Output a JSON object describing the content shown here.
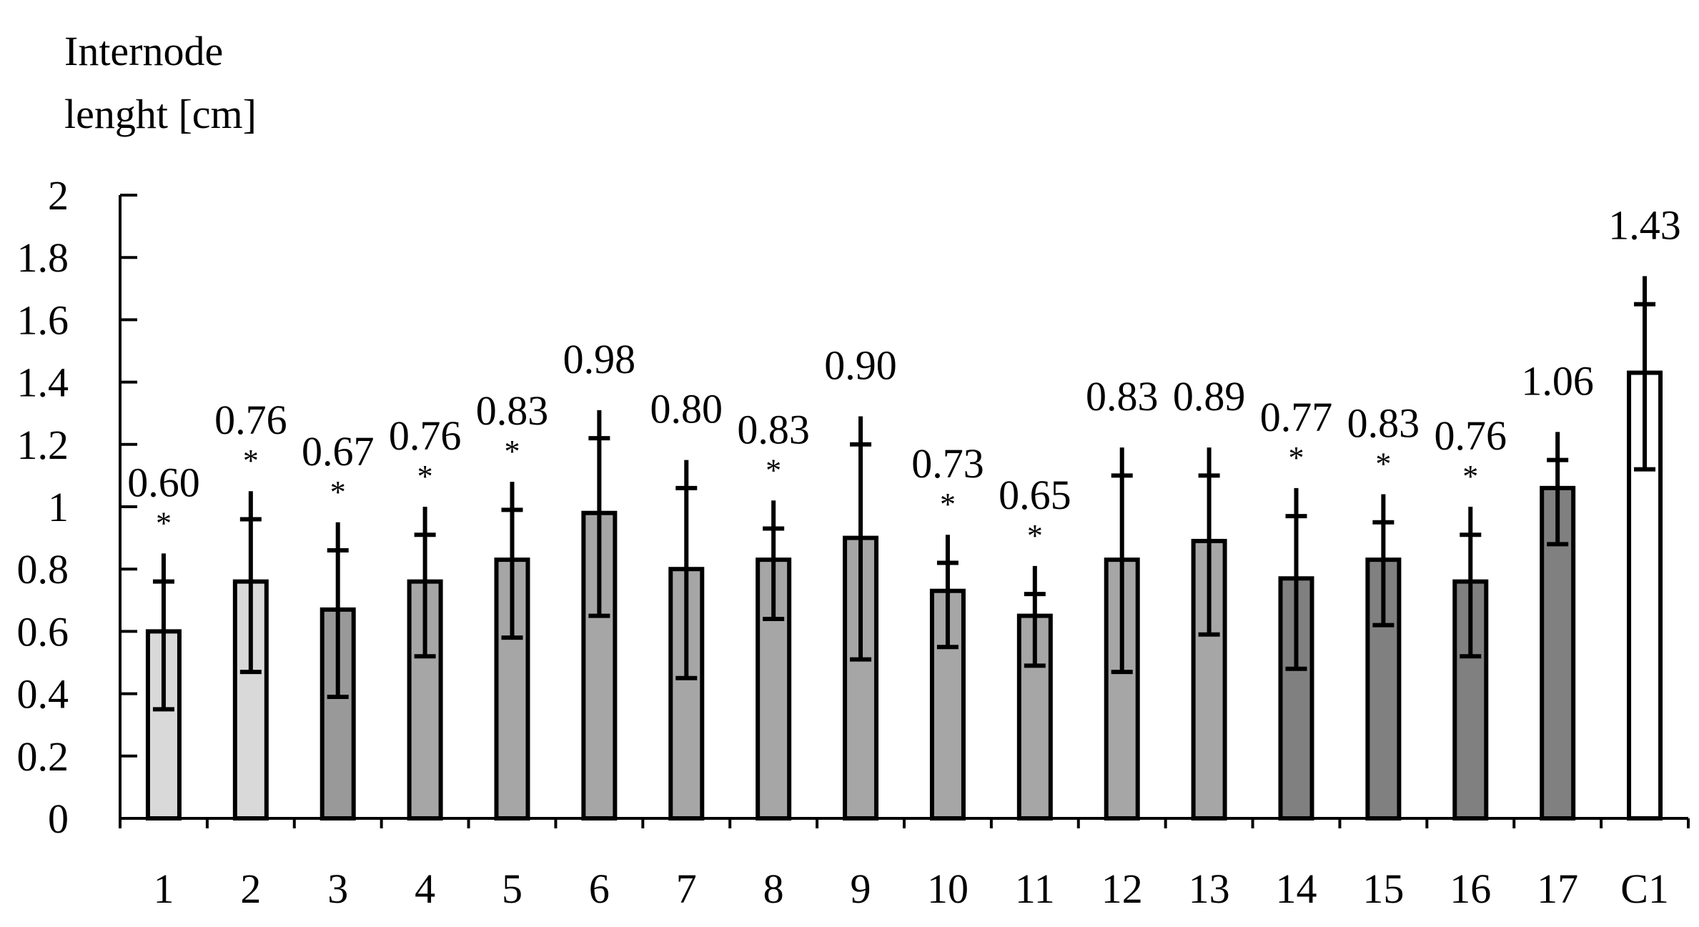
{
  "chart_data": {
    "type": "bar",
    "ylabel_lines": [
      "Internode",
      "lenght [cm]"
    ],
    "ylim": [
      0,
      2
    ],
    "yticks": [
      "0",
      "0.2",
      "0.4",
      "0.6",
      "0.8",
      "1",
      "1.2",
      "1.4",
      "1.6",
      "1.8",
      "2"
    ],
    "grid": false,
    "categories": [
      "1",
      "2",
      "3",
      "4",
      "5",
      "6",
      "7",
      "8",
      "9",
      "10",
      "11",
      "12",
      "13",
      "14",
      "15",
      "16",
      "17",
      "C1"
    ],
    "values": [
      0.6,
      0.76,
      0.67,
      0.76,
      0.83,
      0.98,
      0.8,
      0.83,
      0.9,
      0.73,
      0.65,
      0.83,
      0.89,
      0.77,
      0.83,
      0.76,
      1.06,
      1.43
    ],
    "value_labels": [
      "0.60",
      "0.76",
      "0.67",
      "0.76",
      "0.83",
      "0.98",
      "0.80",
      "0.83",
      "0.90",
      "0.73",
      "0.65",
      "0.83",
      "0.89",
      "0.77",
      "0.83",
      "0.76",
      "1.06",
      "1.43"
    ],
    "error_upper": [
      0.25,
      0.29,
      0.28,
      0.24,
      0.25,
      0.33,
      0.35,
      0.19,
      0.39,
      0.18,
      0.16,
      0.36,
      0.3,
      0.29,
      0.21,
      0.24,
      0.18,
      0.31
    ],
    "error_lower": [
      0.25,
      0.29,
      0.28,
      0.24,
      0.25,
      0.33,
      0.35,
      0.19,
      0.39,
      0.18,
      0.16,
      0.36,
      0.3,
      0.29,
      0.21,
      0.24,
      0.18,
      0.31
    ],
    "significance": [
      "*",
      "*",
      "*",
      "*",
      "*",
      "",
      "",
      "*",
      "",
      "*",
      "*",
      "",
      "",
      "*",
      "*",
      "*",
      "",
      ""
    ],
    "bar_colors": [
      "#d9d9d9",
      "#d9d9d9",
      "#999999",
      "#a6a6a6",
      "#a6a6a6",
      "#a6a6a6",
      "#a6a6a6",
      "#a6a6a6",
      "#a6a6a6",
      "#a6a6a6",
      "#a6a6a6",
      "#a6a6a6",
      "#a6a6a6",
      "#808080",
      "#808080",
      "#808080",
      "#808080",
      "#ffffff"
    ]
  }
}
